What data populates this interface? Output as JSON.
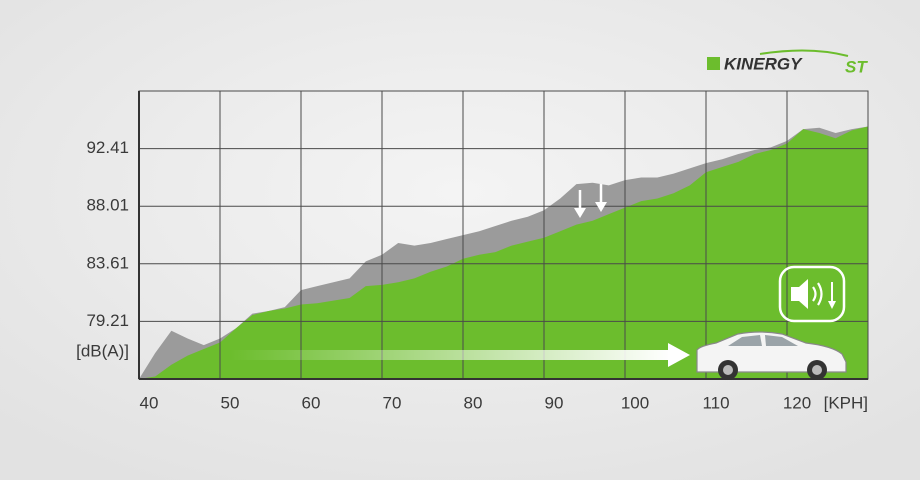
{
  "logo": {
    "name": "KINERGY",
    "suffix": "ST"
  },
  "chart_data": {
    "type": "area",
    "x_label": "[KPH]",
    "y_label": "[dB(A)]",
    "x": [
      40,
      42,
      44,
      46,
      48,
      50,
      52,
      54,
      56,
      58,
      60,
      62,
      64,
      66,
      68,
      70,
      72,
      74,
      76,
      78,
      80,
      82,
      84,
      86,
      88,
      90,
      92,
      94,
      96,
      98,
      100,
      102,
      104,
      106,
      108,
      110,
      112,
      114,
      116,
      118,
      120,
      122,
      124,
      126,
      128,
      130
    ],
    "series": [
      {
        "color": "#9b9b9b",
        "values": [
          74.81,
          76.8,
          78.5,
          77.9,
          77.4,
          77.9,
          78.7,
          79.8,
          80.0,
          80.3,
          81.6,
          81.9,
          82.2,
          82.5,
          83.8,
          84.3,
          85.2,
          85.0,
          85.2,
          85.5,
          85.8,
          86.1,
          86.5,
          86.9,
          87.2,
          87.7,
          88.6,
          89.7,
          89.8,
          89.6,
          90.0,
          90.2,
          90.2,
          90.5,
          90.9,
          91.3,
          91.6,
          92.0,
          92.3,
          92.5,
          93.0,
          93.9,
          94.0,
          93.6,
          93.9,
          94.1
        ]
      },
      {
        "color": "#6cbd2d",
        "values": [
          74.81,
          75.0,
          75.9,
          76.6,
          77.1,
          77.6,
          78.7,
          79.7,
          80.0,
          80.2,
          80.5,
          80.6,
          80.8,
          81.0,
          81.9,
          82.0,
          82.2,
          82.5,
          83.0,
          83.4,
          84.0,
          84.3,
          84.5,
          85.0,
          85.3,
          85.6,
          86.1,
          86.6,
          86.9,
          87.4,
          87.9,
          88.4,
          88.6,
          89.0,
          89.6,
          90.6,
          91.0,
          91.4,
          92.0,
          92.3,
          92.8,
          93.9,
          93.6,
          93.2,
          93.8,
          94.1
        ]
      }
    ],
    "xlim": [
      40,
      130
    ],
    "ylim": [
      74.81,
      96.81
    ],
    "xticks": [
      40,
      50,
      60,
      70,
      80,
      90,
      100,
      110,
      120
    ],
    "yticks": [
      79.21,
      83.61,
      88.01,
      92.41
    ],
    "grid": true
  }
}
